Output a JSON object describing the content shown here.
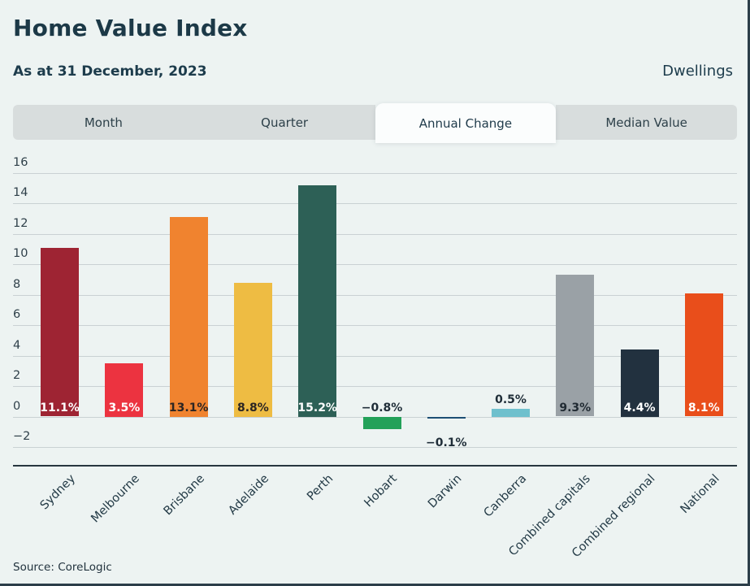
{
  "header": {
    "title": "Home Value Index",
    "subtitle": "As at 31 December, 2023",
    "right_label": "Dwellings"
  },
  "tabs": [
    {
      "label": "Month",
      "active": false
    },
    {
      "label": "Quarter",
      "active": false
    },
    {
      "label": "Annual Change",
      "active": true
    },
    {
      "label": "Median Value",
      "active": false
    }
  ],
  "footer": {
    "source": "Source: CoreLogic"
  },
  "chart_data": {
    "type": "bar",
    "title": "Home Value Index — Annual Change — Dwellings — As at 31 December, 2023",
    "categories": [
      "Sydney",
      "Melbourne",
      "Brisbane",
      "Adelaide",
      "Perth",
      "Hobart",
      "Darwin",
      "Canberra",
      "Combined capitals",
      "Combined regional",
      "National"
    ],
    "values": [
      11.1,
      3.5,
      13.1,
      8.8,
      15.2,
      -0.8,
      -0.1,
      0.5,
      9.3,
      4.4,
      8.1
    ],
    "ylim": [
      -2,
      16
    ],
    "yticks": [
      16,
      14,
      12,
      10,
      8,
      6,
      4,
      2,
      0,
      -2
    ],
    "grid": true,
    "legend": false,
    "xlabel": "",
    "ylabel": "",
    "bars": [
      {
        "category": "Sydney",
        "value": 11.1,
        "display": "11.1%",
        "color": "#9e2433",
        "label_color": "#ffffff",
        "label_position": "inside"
      },
      {
        "category": "Melbourne",
        "value": 3.5,
        "display": "3.5%",
        "color": "#ec3340",
        "label_color": "#ffffff",
        "label_position": "inside"
      },
      {
        "category": "Brisbane",
        "value": 13.1,
        "display": "13.1%",
        "color": "#f0832f",
        "label_color": "#2b2523",
        "label_position": "inside"
      },
      {
        "category": "Adelaide",
        "value": 8.8,
        "display": "8.8%",
        "color": "#eebc43",
        "label_color": "#2b2523",
        "label_position": "inside"
      },
      {
        "category": "Perth",
        "value": 15.2,
        "display": "15.2%",
        "color": "#2d6056",
        "label_color": "#ffffff",
        "label_position": "inside"
      },
      {
        "category": "Hobart",
        "value": -0.8,
        "display": "−0.8%",
        "color": "#23a159",
        "label_color": "#1f2d38",
        "label_position": "inside"
      },
      {
        "category": "Darwin",
        "value": -0.1,
        "display": "−0.1%",
        "color": "#1d4e74",
        "label_color": "#1f2d38",
        "label_position": "below"
      },
      {
        "category": "Canberra",
        "value": 0.5,
        "display": "0.5%",
        "color": "#6fc0cd",
        "label_color": "#1f2d38",
        "label_position": "above"
      },
      {
        "category": "Combined capitals",
        "value": 9.3,
        "display": "9.3%",
        "color": "#9aa1a6",
        "label_color": "#212b33",
        "label_position": "inside"
      },
      {
        "category": "Combined regional",
        "value": 4.4,
        "display": "4.4%",
        "color": "#22313f",
        "label_color": "#ffffff",
        "label_position": "inside"
      },
      {
        "category": "National",
        "value": 8.1,
        "display": "8.1%",
        "color": "#e94e1b",
        "label_color": "#ffffff",
        "label_position": "inside"
      }
    ]
  }
}
